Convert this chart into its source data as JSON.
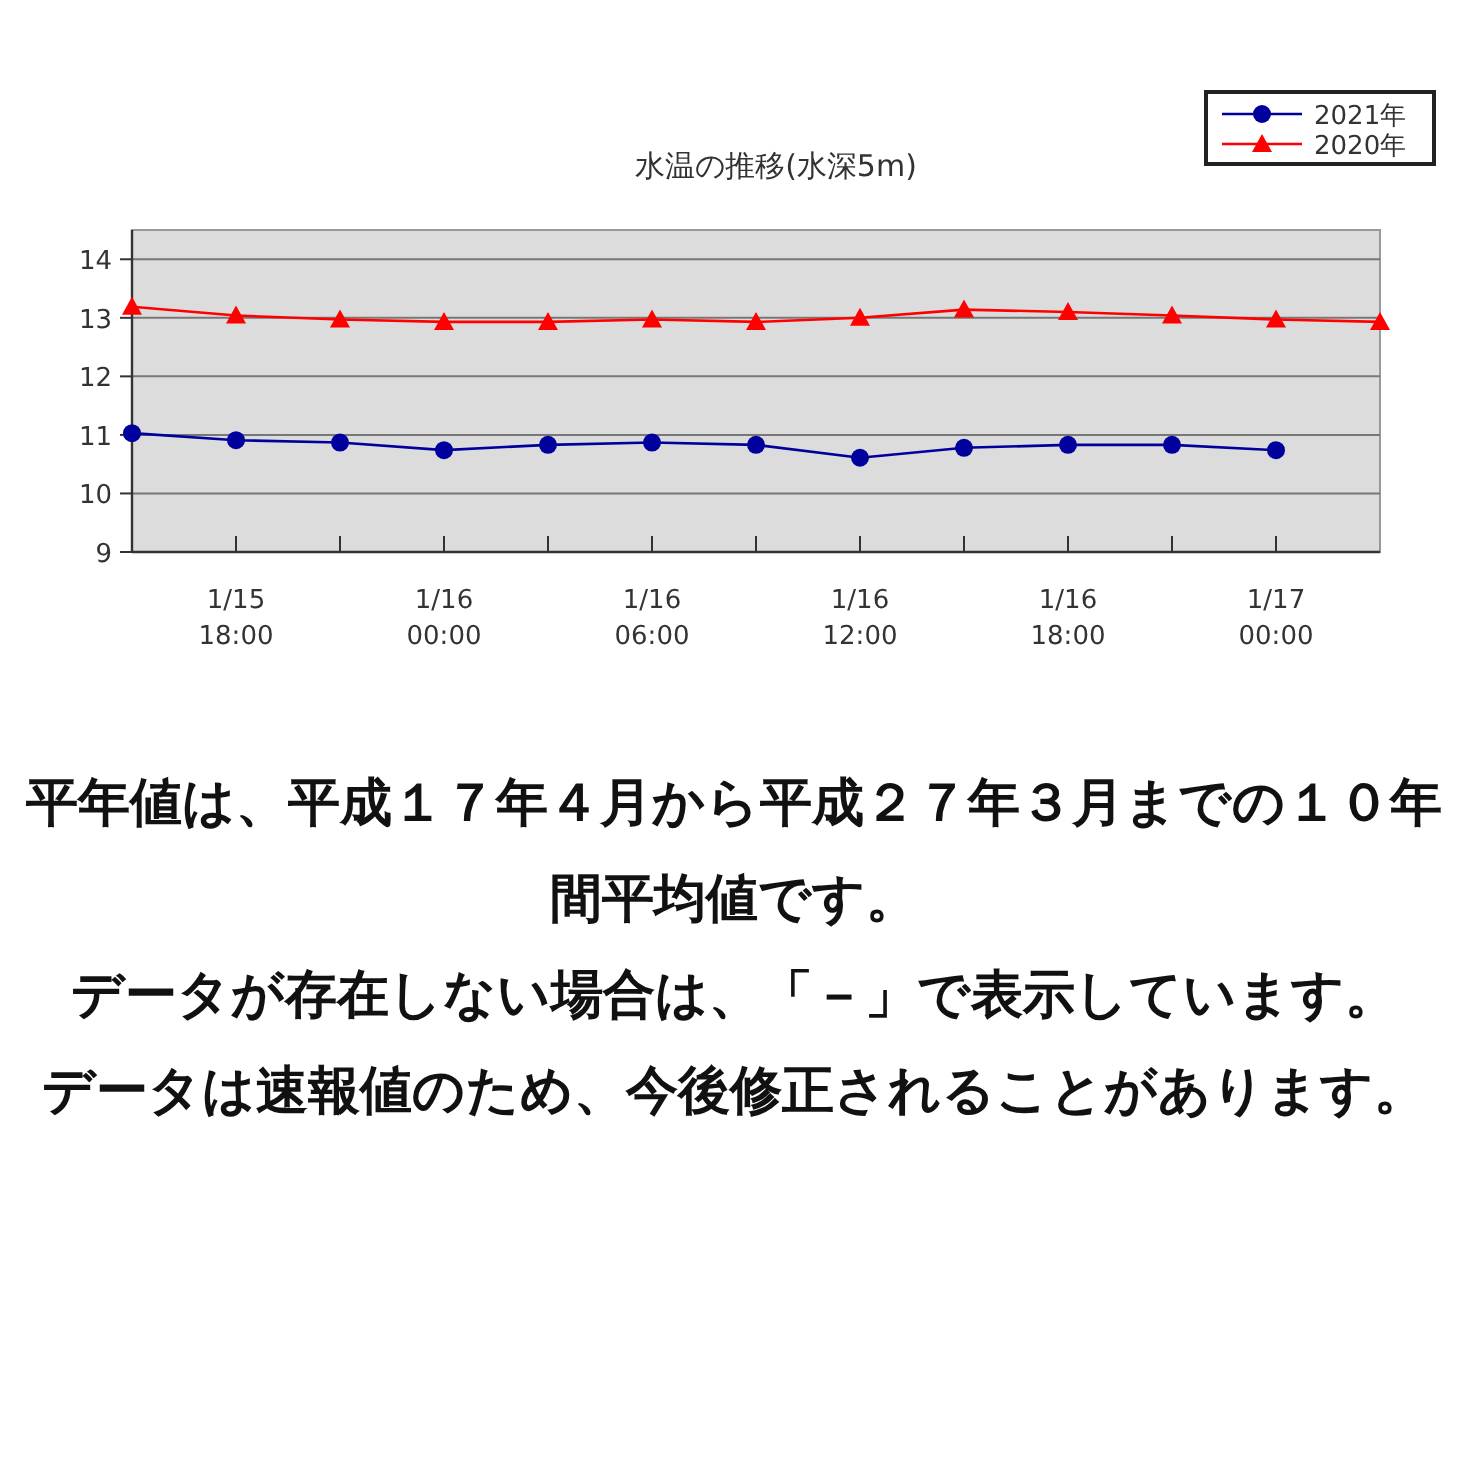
{
  "chart_data": {
    "type": "line",
    "title": "水温の推移(水深5m)",
    "categories": [
      null,
      "1/15\n18:00",
      null,
      "1/16\n00:00",
      null,
      "1/16\n06:00",
      null,
      "1/16\n12:00",
      null,
      "1/16\n18:00",
      null,
      "1/17\n00:00",
      null
    ],
    "series": [
      {
        "name": "2021年",
        "color": "#00009c",
        "marker": "circle",
        "values": [
          11.03,
          10.91,
          10.87,
          10.74,
          10.83,
          10.87,
          10.83,
          10.61,
          10.78,
          10.83,
          10.83,
          10.74,
          null
        ]
      },
      {
        "name": "2020年",
        "color": "#ff0000",
        "marker": "triangle",
        "values": [
          13.19,
          13.04,
          12.97,
          12.93,
          12.93,
          12.97,
          12.93,
          13.0,
          13.14,
          13.1,
          13.04,
          12.97,
          12.93
        ]
      }
    ],
    "ylim": [
      9,
      14.5
    ],
    "yticks": [
      9,
      10,
      11,
      12,
      13,
      14
    ],
    "grid": "y",
    "legend": "top right",
    "annotations": [
      "平年値は、平成１７年４月から平成２７年３月までの１０年間平均値です。",
      "データが存在しない場合は、「－」で表示しています。",
      "データは速報値のため、今後修正されることがあります。"
    ]
  }
}
